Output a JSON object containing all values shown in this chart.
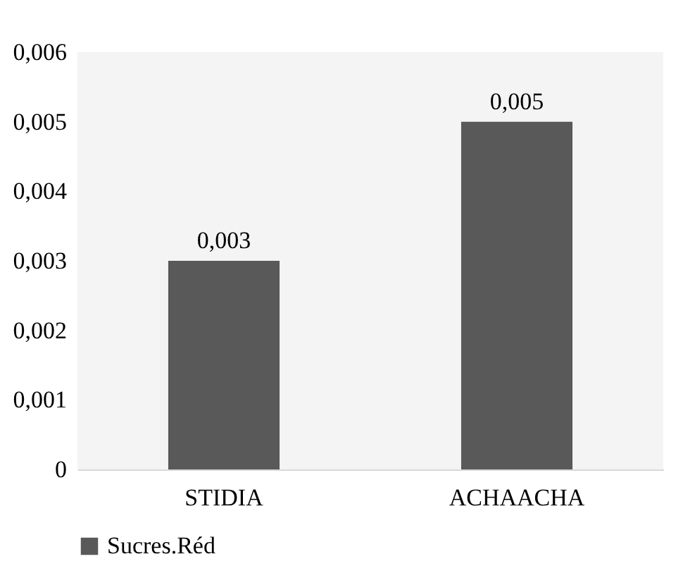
{
  "chart_data": {
    "type": "bar",
    "categories": [
      "STIDIA",
      "ACHAACHA"
    ],
    "series": [
      {
        "name": "Sucres.Réd",
        "color": "#595959",
        "values": [
          0.003,
          0.005
        ],
        "value_labels": [
          "0,003",
          "0,005"
        ]
      }
    ],
    "ylim": [
      0,
      0.006
    ],
    "yticks": [
      {
        "value": 0,
        "label": "0"
      },
      {
        "value": 0.001,
        "label": "0,001"
      },
      {
        "value": 0.002,
        "label": "0,002"
      },
      {
        "value": 0.003,
        "label": "0,003"
      },
      {
        "value": 0.004,
        "label": "0,004"
      },
      {
        "value": 0.005,
        "label": "0,005"
      },
      {
        "value": 0.006,
        "label": "0,006"
      }
    ],
    "grid": false,
    "legend": "bottom"
  }
}
